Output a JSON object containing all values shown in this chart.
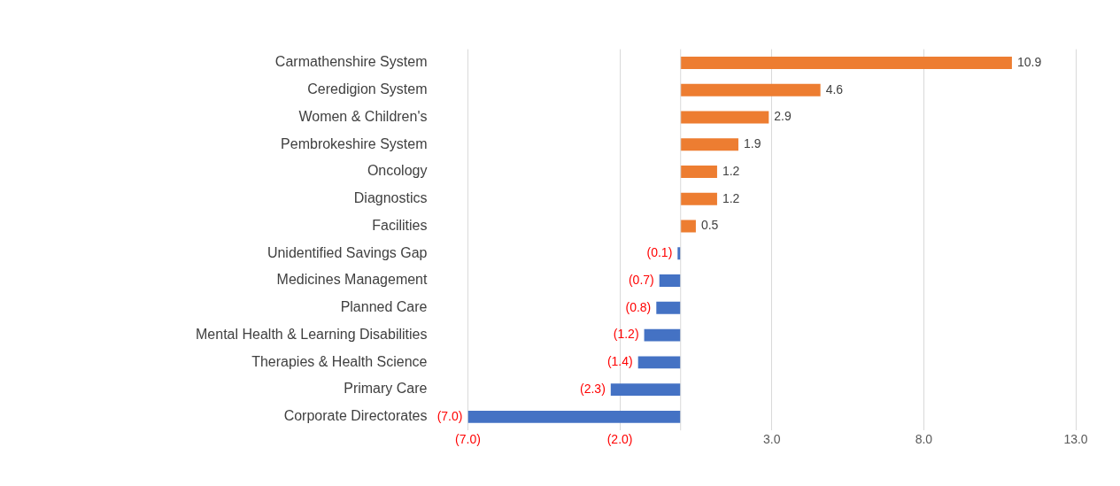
{
  "chart_data": {
    "type": "bar",
    "orientation": "horizontal",
    "categories": [
      "Carmathenshire System",
      "Ceredigion System",
      "Women & Children's",
      "Pembrokeshire System",
      "Oncology",
      "Diagnostics",
      "Facilities",
      "Unidentified Savings Gap",
      "Medicines Management",
      "Planned Care",
      "Mental Health & Learning Disabilities",
      "Therapies & Health Science",
      "Primary Care",
      "Corporate Directorates"
    ],
    "values": [
      10.9,
      4.6,
      2.9,
      1.9,
      1.2,
      1.2,
      0.5,
      -0.1,
      -0.7,
      -0.8,
      -1.2,
      -1.4,
      -2.3,
      -7.0
    ],
    "colors": [
      "#ed7d31",
      "#ed7d31",
      "#ed7d31",
      "#ed7d31",
      "#ed7d31",
      "#ed7d31",
      "#ed7d31",
      "#4472c4",
      "#4472c4",
      "#4472c4",
      "#4472c4",
      "#4472c4",
      "#4472c4",
      "#4472c4"
    ],
    "value_labels": [
      "10.9",
      "4.6",
      "2.9",
      "1.9",
      "1.2",
      "1.2",
      "0.5",
      "(0.1)",
      "(0.7)",
      "(0.8)",
      "(1.2)",
      "(1.4)",
      "(2.3)",
      "(7.0)"
    ],
    "xlim": [
      -7,
      13
    ],
    "xticks": [
      {
        "value": -7,
        "label": "(7.0)"
      },
      {
        "value": -2,
        "label": "(2.0)"
      },
      {
        "value": 3,
        "label": "3.0"
      },
      {
        "value": 8,
        "label": "8.0"
      },
      {
        "value": 13,
        "label": "13.0"
      }
    ],
    "grid": "x",
    "legend": false
  }
}
